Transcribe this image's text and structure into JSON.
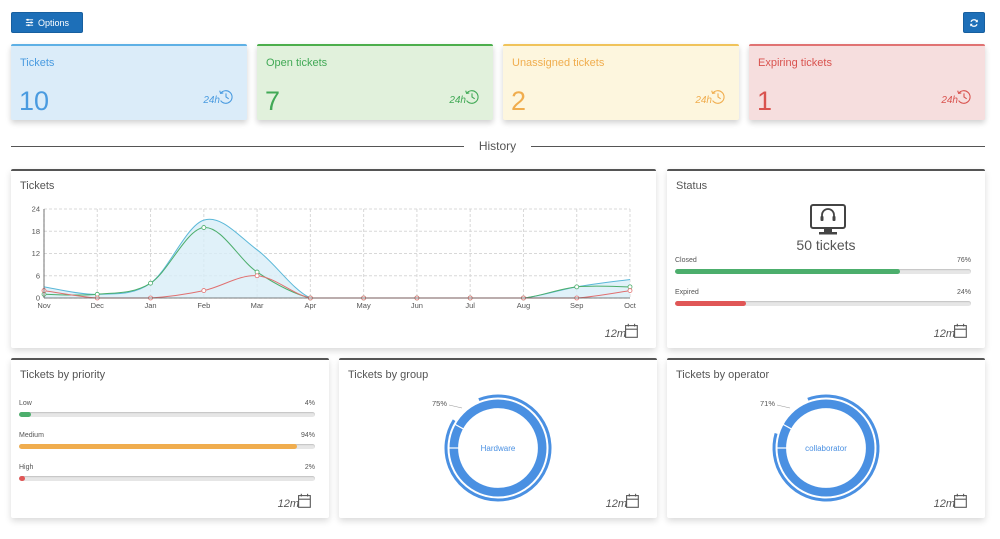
{
  "toolbar": {
    "options_label": "Options",
    "options_icon": "sliders-icon",
    "refresh_icon": "refresh-icon"
  },
  "kpis": [
    {
      "title": "Tickets",
      "value": "10",
      "period": "24h",
      "color": "#4a9be0"
    },
    {
      "title": "Open tickets",
      "value": "7",
      "period": "24h",
      "color": "#41a956"
    },
    {
      "title": "Unassigned tickets",
      "value": "2",
      "period": "24h",
      "color": "#f0ad4e"
    },
    {
      "title": "Expiring tickets",
      "value": "1",
      "period": "24h",
      "color": "#d9534f"
    }
  ],
  "history_label": "History",
  "tickets_card": {
    "title": "Tickets",
    "period": "12m",
    "chart_data": {
      "type": "line",
      "categories": [
        "Nov",
        "Dec",
        "Jan",
        "Feb",
        "Mar",
        "Apr",
        "May",
        "Jun",
        "Jul",
        "Aug",
        "Sep",
        "Oct"
      ],
      "ylim": [
        0,
        24
      ],
      "yticks": [
        0,
        6,
        12,
        18,
        24
      ],
      "grid": true,
      "series": [
        {
          "color": "#5bb8d8",
          "fill": "#d8edf7",
          "values": [
            3,
            1,
            4,
            21,
            13,
            0,
            0,
            0,
            0,
            0,
            3,
            5
          ]
        },
        {
          "color": "#4cae6c",
          "values": [
            1,
            1,
            4,
            19,
            7,
            0,
            0,
            0,
            0,
            0,
            3,
            3
          ]
        },
        {
          "color": "#e07070",
          "values": [
            2,
            0,
            0,
            2,
            6,
            0,
            0,
            0,
            0,
            0,
            0,
            2
          ]
        }
      ]
    }
  },
  "status_card": {
    "title": "Status",
    "icon": "headset-monitor-icon",
    "count_label": "50 tickets",
    "bars": [
      {
        "label": "Closed",
        "percent_label": "76%",
        "value": 0.76,
        "color": "#4cae6c"
      },
      {
        "label": "Expired",
        "percent_label": "24%",
        "value": 0.24,
        "color": "#e05656"
      }
    ],
    "period": "12m"
  },
  "priority_card": {
    "title": "Tickets by priority",
    "bars": [
      {
        "label": "Low",
        "percent_label": "4%",
        "value": 0.04,
        "color": "#4cae6c"
      },
      {
        "label": "Medium",
        "percent_label": "94%",
        "value": 0.94,
        "color": "#f0ad4e"
      },
      {
        "label": "High",
        "percent_label": "2%",
        "value": 0.02,
        "color": "#e05656"
      }
    ],
    "period": "12m"
  },
  "group_card": {
    "title": "Tickets by group",
    "chart_data": {
      "type": "pie",
      "categories": [
        "Hardware"
      ],
      "values": [
        75
      ],
      "center_label": "Hardware",
      "percent_label": "75%",
      "color": "#4a90e2"
    },
    "period": "12m"
  },
  "operator_card": {
    "title": "Tickets by operator",
    "chart_data": {
      "type": "pie",
      "categories": [
        "collaborator"
      ],
      "values": [
        71
      ],
      "center_label": "collaborator",
      "percent_label": "71%",
      "color": "#4a90e2"
    },
    "period": "12m"
  }
}
